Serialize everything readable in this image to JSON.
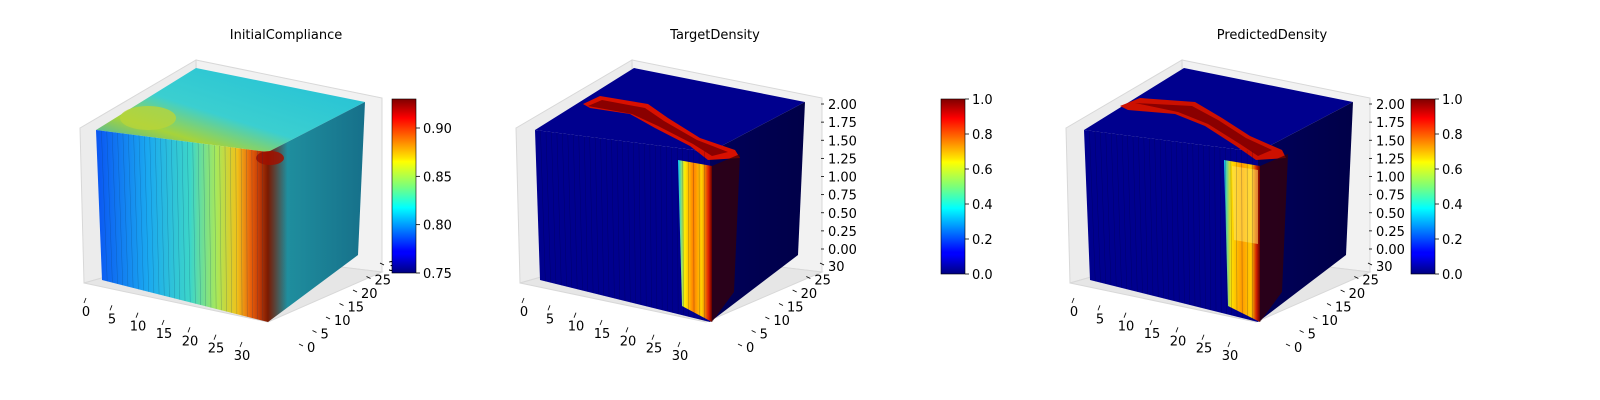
{
  "chart_data": [
    {
      "type": "3d-voxel",
      "title": "InitialCompliance",
      "x_ticks": [
        "0",
        "5",
        "10",
        "15",
        "20",
        "25",
        "30"
      ],
      "y_ticks": [
        "0",
        "5",
        "10",
        "15",
        "20",
        "25",
        "30"
      ],
      "colorbar": {
        "colormap": "jet",
        "min": 0.75,
        "max": 0.93,
        "ticks": [
          "0.75",
          "0.80",
          "0.85",
          "0.90"
        ]
      },
      "voxel_field": "smooth compliance field, low (~0.77) at left, rising to ~0.93 near the right face"
    },
    {
      "type": "3d-voxel",
      "title": "TargetDensity",
      "x_ticks": [
        "0",
        "5",
        "10",
        "15",
        "20",
        "25",
        "30"
      ],
      "y_ticks": [
        "0",
        "5",
        "10",
        "15",
        "20",
        "25",
        "30"
      ],
      "z_ticks": [
        "0.00",
        "0.25",
        "0.50",
        "0.75",
        "1.00",
        "1.25",
        "1.50",
        "1.75",
        "2.00"
      ],
      "colorbar": {
        "colormap": "jet",
        "min": 0.0,
        "max": 1.0,
        "ticks": [
          "0.0",
          "0.2",
          "0.4",
          "0.6",
          "0.8",
          "1.0"
        ]
      }
    },
    {
      "type": "3d-voxel",
      "title": "PredictedDensity",
      "x_ticks": [
        "0",
        "5",
        "10",
        "15",
        "20",
        "25",
        "30"
      ],
      "y_ticks": [
        "0",
        "5",
        "10",
        "15",
        "20",
        "25",
        "30"
      ],
      "z_ticks": [
        "0.00",
        "0.25",
        "0.50",
        "0.75",
        "1.00",
        "1.25",
        "1.50",
        "1.75",
        "2.00"
      ],
      "colorbar": {
        "colormap": "jet",
        "min": 0.0,
        "max": 1.0,
        "ticks": [
          "0.0",
          "0.2",
          "0.4",
          "0.6",
          "0.8",
          "1.0"
        ]
      }
    }
  ]
}
